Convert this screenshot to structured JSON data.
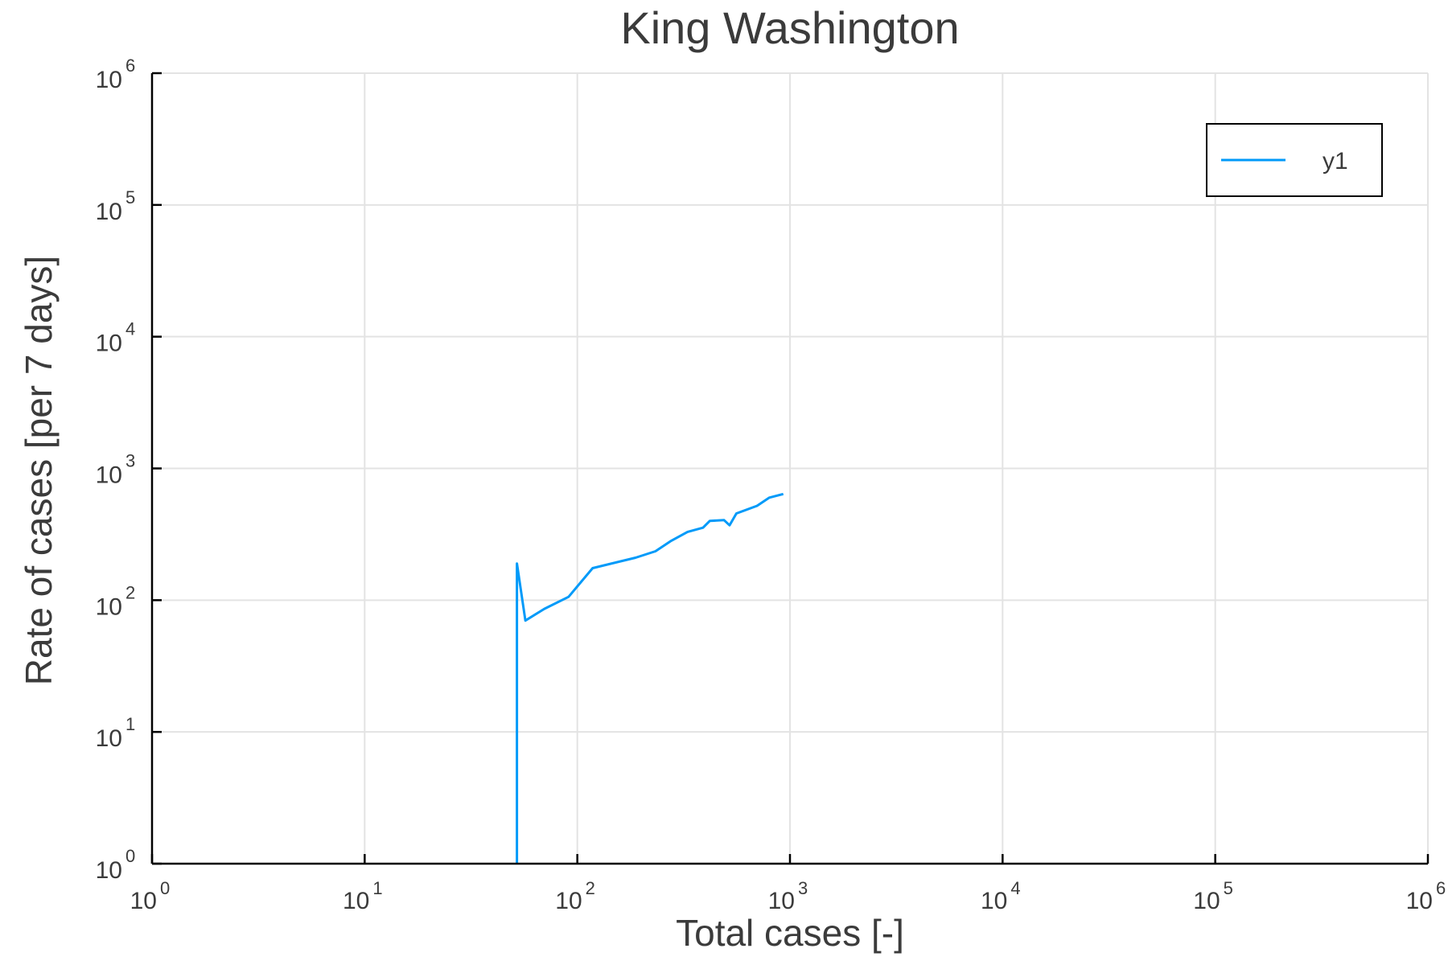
{
  "chart_data": {
    "type": "line",
    "title": "King Washington",
    "xlabel": "Total cases [-]",
    "ylabel": "Rate of cases [per 7 days]",
    "xscale": "log",
    "yscale": "log",
    "xlim": [
      1,
      1000000
    ],
    "ylim": [
      1,
      1000000
    ],
    "grid": true,
    "legend_position": "top-right",
    "x_ticks": [
      {
        "base": "10",
        "exp": "0",
        "value": 1
      },
      {
        "base": "10",
        "exp": "1",
        "value": 10
      },
      {
        "base": "10",
        "exp": "2",
        "value": 100
      },
      {
        "base": "10",
        "exp": "3",
        "value": 1000
      },
      {
        "base": "10",
        "exp": "4",
        "value": 10000
      },
      {
        "base": "10",
        "exp": "5",
        "value": 100000
      },
      {
        "base": "10",
        "exp": "6",
        "value": 1000000
      }
    ],
    "y_ticks": [
      {
        "base": "10",
        "exp": "0",
        "value": 1
      },
      {
        "base": "10",
        "exp": "1",
        "value": 10
      },
      {
        "base": "10",
        "exp": "2",
        "value": 100
      },
      {
        "base": "10",
        "exp": "3",
        "value": 1000
      },
      {
        "base": "10",
        "exp": "4",
        "value": 10000
      },
      {
        "base": "10",
        "exp": "5",
        "value": 100000
      },
      {
        "base": "10",
        "exp": "6",
        "value": 1000000
      }
    ],
    "series": [
      {
        "name": "y1",
        "color": "#009af9",
        "x": [
          52,
          52,
          57,
          70,
          91,
          118,
          188,
          233,
          274,
          330,
          390,
          420,
          490,
          520,
          560,
          700,
          800,
          930
        ],
        "y": [
          1,
          190,
          70,
          86,
          106,
          175,
          210,
          235,
          280,
          330,
          355,
          400,
          405,
          370,
          455,
          520,
          600,
          640
        ]
      }
    ]
  }
}
